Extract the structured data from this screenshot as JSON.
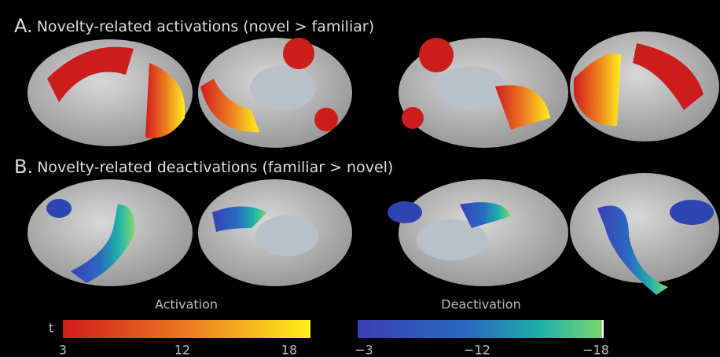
{
  "panels": [
    {
      "letter": "A.",
      "title": "Novelty-related activations (novel > familiar)"
    },
    {
      "letter": "B.",
      "title": "Novelty-related deactivations (familiar > novel)"
    }
  ],
  "colorbars": [
    {
      "label": "Activation",
      "unit": "t",
      "ticks": [
        "3",
        "12",
        "18"
      ]
    },
    {
      "label": "Deactivation",
      "ticks": [
        "−3",
        "−12",
        "−18"
      ]
    }
  ]
}
